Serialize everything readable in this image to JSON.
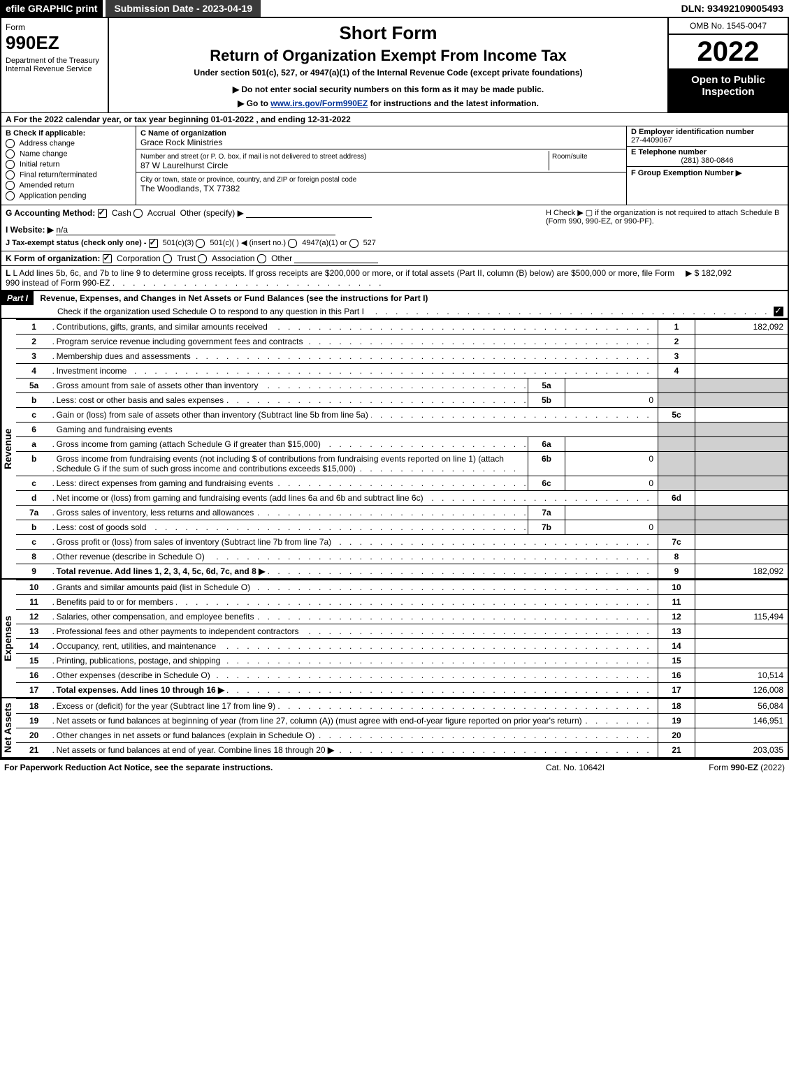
{
  "colors": {
    "black": "#000000",
    "grey_cell": "#d0d0d0",
    "link": "#003399",
    "dark_grey": "#3a3a3a"
  },
  "topbar": {
    "efile": "efile GRAPHIC print",
    "subdate": "Submission Date - 2023-04-19",
    "dln": "DLN: 93492109005493"
  },
  "header": {
    "form": "Form",
    "num": "990EZ",
    "dept": "Department of the Treasury\nInternal Revenue Service",
    "short_form": "Short Form",
    "roe": "Return of Organization Exempt From Income Tax",
    "under": "Under section 501(c), 527, or 4947(a)(1) of the Internal Revenue Code (except private foundations)",
    "notice1": "▶ Do not enter social security numbers on this form as it may be made public.",
    "goto_pre": "▶ Go to ",
    "goto_link": "www.irs.gov/Form990EZ",
    "goto_post": " for instructions and the latest information.",
    "omb": "OMB No. 1545-0047",
    "year": "2022",
    "open": "Open to Public Inspection"
  },
  "lineA": "A  For the 2022 calendar year, or tax year beginning 01-01-2022 , and ending 12-31-2022",
  "sectionB": {
    "title": "B  Check if applicable:",
    "opts": [
      "Address change",
      "Name change",
      "Initial return",
      "Final return/terminated",
      "Amended return",
      "Application pending"
    ]
  },
  "sectionC": {
    "name_lbl": "C Name of organization",
    "name": "Grace Rock Ministries",
    "street_lbl": "Number and street (or P. O. box, if mail is not delivered to street address)",
    "room_lbl": "Room/suite",
    "street": "87 W Laurelhurst Circle",
    "city_lbl": "City or town, state or province, country, and ZIP or foreign postal code",
    "city": "The Woodlands, TX  77382"
  },
  "sectionD": {
    "ein_lbl": "D Employer identification number",
    "ein": "27-4409067",
    "tel_lbl": "E Telephone number",
    "tel": "(281) 380-0846",
    "grp_lbl": "F Group Exemption Number  ▶"
  },
  "gRow": {
    "g_pre": "G Accounting Method:",
    "cash": "Cash",
    "accrual": "Accrual",
    "other": "Other (specify) ▶",
    "h_text": "H  Check ▶  ▢  if the organization is not required to attach Schedule B (Form 990, 990-EZ, or 990-PF).",
    "i_pre": "I Website: ▶",
    "i_val": "n/a",
    "j_pre": "J Tax-exempt status (check only one) - ",
    "j_501c3": "501(c)(3)",
    "j_501c": "501(c)(  ) ◀ (insert no.)",
    "j_4947": "4947(a)(1) or",
    "j_527": "527",
    "k_pre": "K Form of organization:",
    "k_opts": [
      "Corporation",
      "Trust",
      "Association",
      "Other"
    ],
    "l_text": "L Add lines 5b, 6c, and 7b to line 9 to determine gross receipts. If gross receipts are $200,000 or more, or if total assets (Part II, column (B) below) are $500,000 or more, file Form 990 instead of Form 990-EZ",
    "l_amt": "▶ $ 182,092"
  },
  "partI": {
    "label": "Part I",
    "title": "Revenue, Expenses, and Changes in Net Assets or Fund Balances (see the instructions for Part I)",
    "sub": "Check if the organization used Schedule O to respond to any question in this Part I",
    "checked": true
  },
  "sections": {
    "revenue_label": "Revenue",
    "expenses_label": "Expenses",
    "netassets_label": "Net Assets"
  },
  "lines": [
    {
      "n": "1",
      "desc": "Contributions, gifts, grants, and similar amounts received",
      "box": "1",
      "amt": "182,092"
    },
    {
      "n": "2",
      "desc": "Program service revenue including government fees and contracts",
      "box": "2",
      "amt": ""
    },
    {
      "n": "3",
      "desc": "Membership dues and assessments",
      "box": "3",
      "amt": ""
    },
    {
      "n": "4",
      "desc": "Investment income",
      "box": "4",
      "amt": ""
    },
    {
      "n": "5a",
      "desc": "Gross amount from sale of assets other than inventory",
      "sub_box": "5a",
      "sub_amt": "",
      "box_grey": true
    },
    {
      "n": "b",
      "desc": "Less: cost or other basis and sales expenses",
      "sub_box": "5b",
      "sub_amt": "0",
      "box_grey": true
    },
    {
      "n": "c",
      "desc": "Gain or (loss) from sale of assets other than inventory (Subtract line 5b from line 5a)",
      "box": "5c",
      "amt": ""
    },
    {
      "n": "6",
      "desc": "Gaming and fundraising events",
      "box_grey": true,
      "no_box": true
    },
    {
      "n": "a",
      "desc": "Gross income from gaming (attach Schedule G if greater than $15,000)",
      "sub_box": "6a",
      "sub_amt": "",
      "box_grey": true
    },
    {
      "n": "b",
      "desc": "Gross income from fundraising events (not including $                    of contributions from fundraising events reported on line 1) (attach Schedule G if the sum of such gross income and contributions exceeds $15,000)",
      "sub_box": "6b",
      "sub_amt": "0",
      "box_grey": true,
      "wrap": true
    },
    {
      "n": "c",
      "desc": "Less: direct expenses from gaming and fundraising events",
      "sub_box": "6c",
      "sub_amt": "0",
      "box_grey": true
    },
    {
      "n": "d",
      "desc": "Net income or (loss) from gaming and fundraising events (add lines 6a and 6b and subtract line 6c)",
      "box": "6d",
      "amt": ""
    },
    {
      "n": "7a",
      "desc": "Gross sales of inventory, less returns and allowances",
      "sub_box": "7a",
      "sub_amt": "",
      "box_grey": true
    },
    {
      "n": "b",
      "desc": "Less: cost of goods sold",
      "sub_box": "7b",
      "sub_amt": "0",
      "box_grey": true
    },
    {
      "n": "c",
      "desc": "Gross profit or (loss) from sales of inventory (Subtract line 7b from line 7a)",
      "box": "7c",
      "amt": ""
    },
    {
      "n": "8",
      "desc": "Other revenue (describe in Schedule O)",
      "box": "8",
      "amt": ""
    },
    {
      "n": "9",
      "desc": "Total revenue. Add lines 1, 2, 3, 4, 5c, 6d, 7c, and 8",
      "box": "9",
      "amt": "182,092",
      "bold": true,
      "arrow": true
    }
  ],
  "exp_lines": [
    {
      "n": "10",
      "desc": "Grants and similar amounts paid (list in Schedule O)",
      "box": "10",
      "amt": ""
    },
    {
      "n": "11",
      "desc": "Benefits paid to or for members",
      "box": "11",
      "amt": ""
    },
    {
      "n": "12",
      "desc": "Salaries, other compensation, and employee benefits",
      "box": "12",
      "amt": "115,494"
    },
    {
      "n": "13",
      "desc": "Professional fees and other payments to independent contractors",
      "box": "13",
      "amt": ""
    },
    {
      "n": "14",
      "desc": "Occupancy, rent, utilities, and maintenance",
      "box": "14",
      "amt": ""
    },
    {
      "n": "15",
      "desc": "Printing, publications, postage, and shipping",
      "box": "15",
      "amt": ""
    },
    {
      "n": "16",
      "desc": "Other expenses (describe in Schedule O)",
      "box": "16",
      "amt": "10,514"
    },
    {
      "n": "17",
      "desc": "Total expenses. Add lines 10 through 16",
      "box": "17",
      "amt": "126,008",
      "bold": true,
      "arrow": true
    }
  ],
  "na_lines": [
    {
      "n": "18",
      "desc": "Excess or (deficit) for the year (Subtract line 17 from line 9)",
      "box": "18",
      "amt": "56,084"
    },
    {
      "n": "19",
      "desc": "Net assets or fund balances at beginning of year (from line 27, column (A)) (must agree with end-of-year figure reported on prior year's return)",
      "box": "19",
      "amt": "146,951",
      "wrap": true
    },
    {
      "n": "20",
      "desc": "Other changes in net assets or fund balances (explain in Schedule O)",
      "box": "20",
      "amt": ""
    },
    {
      "n": "21",
      "desc": "Net assets or fund balances at end of year. Combine lines 18 through 20",
      "box": "21",
      "amt": "203,035",
      "arrow": true
    }
  ],
  "footer": {
    "left": "For Paperwork Reduction Act Notice, see the separate instructions.",
    "mid": "Cat. No. 10642I",
    "right_pre": "Form ",
    "right_bold": "990-EZ",
    "right_post": " (2022)"
  }
}
